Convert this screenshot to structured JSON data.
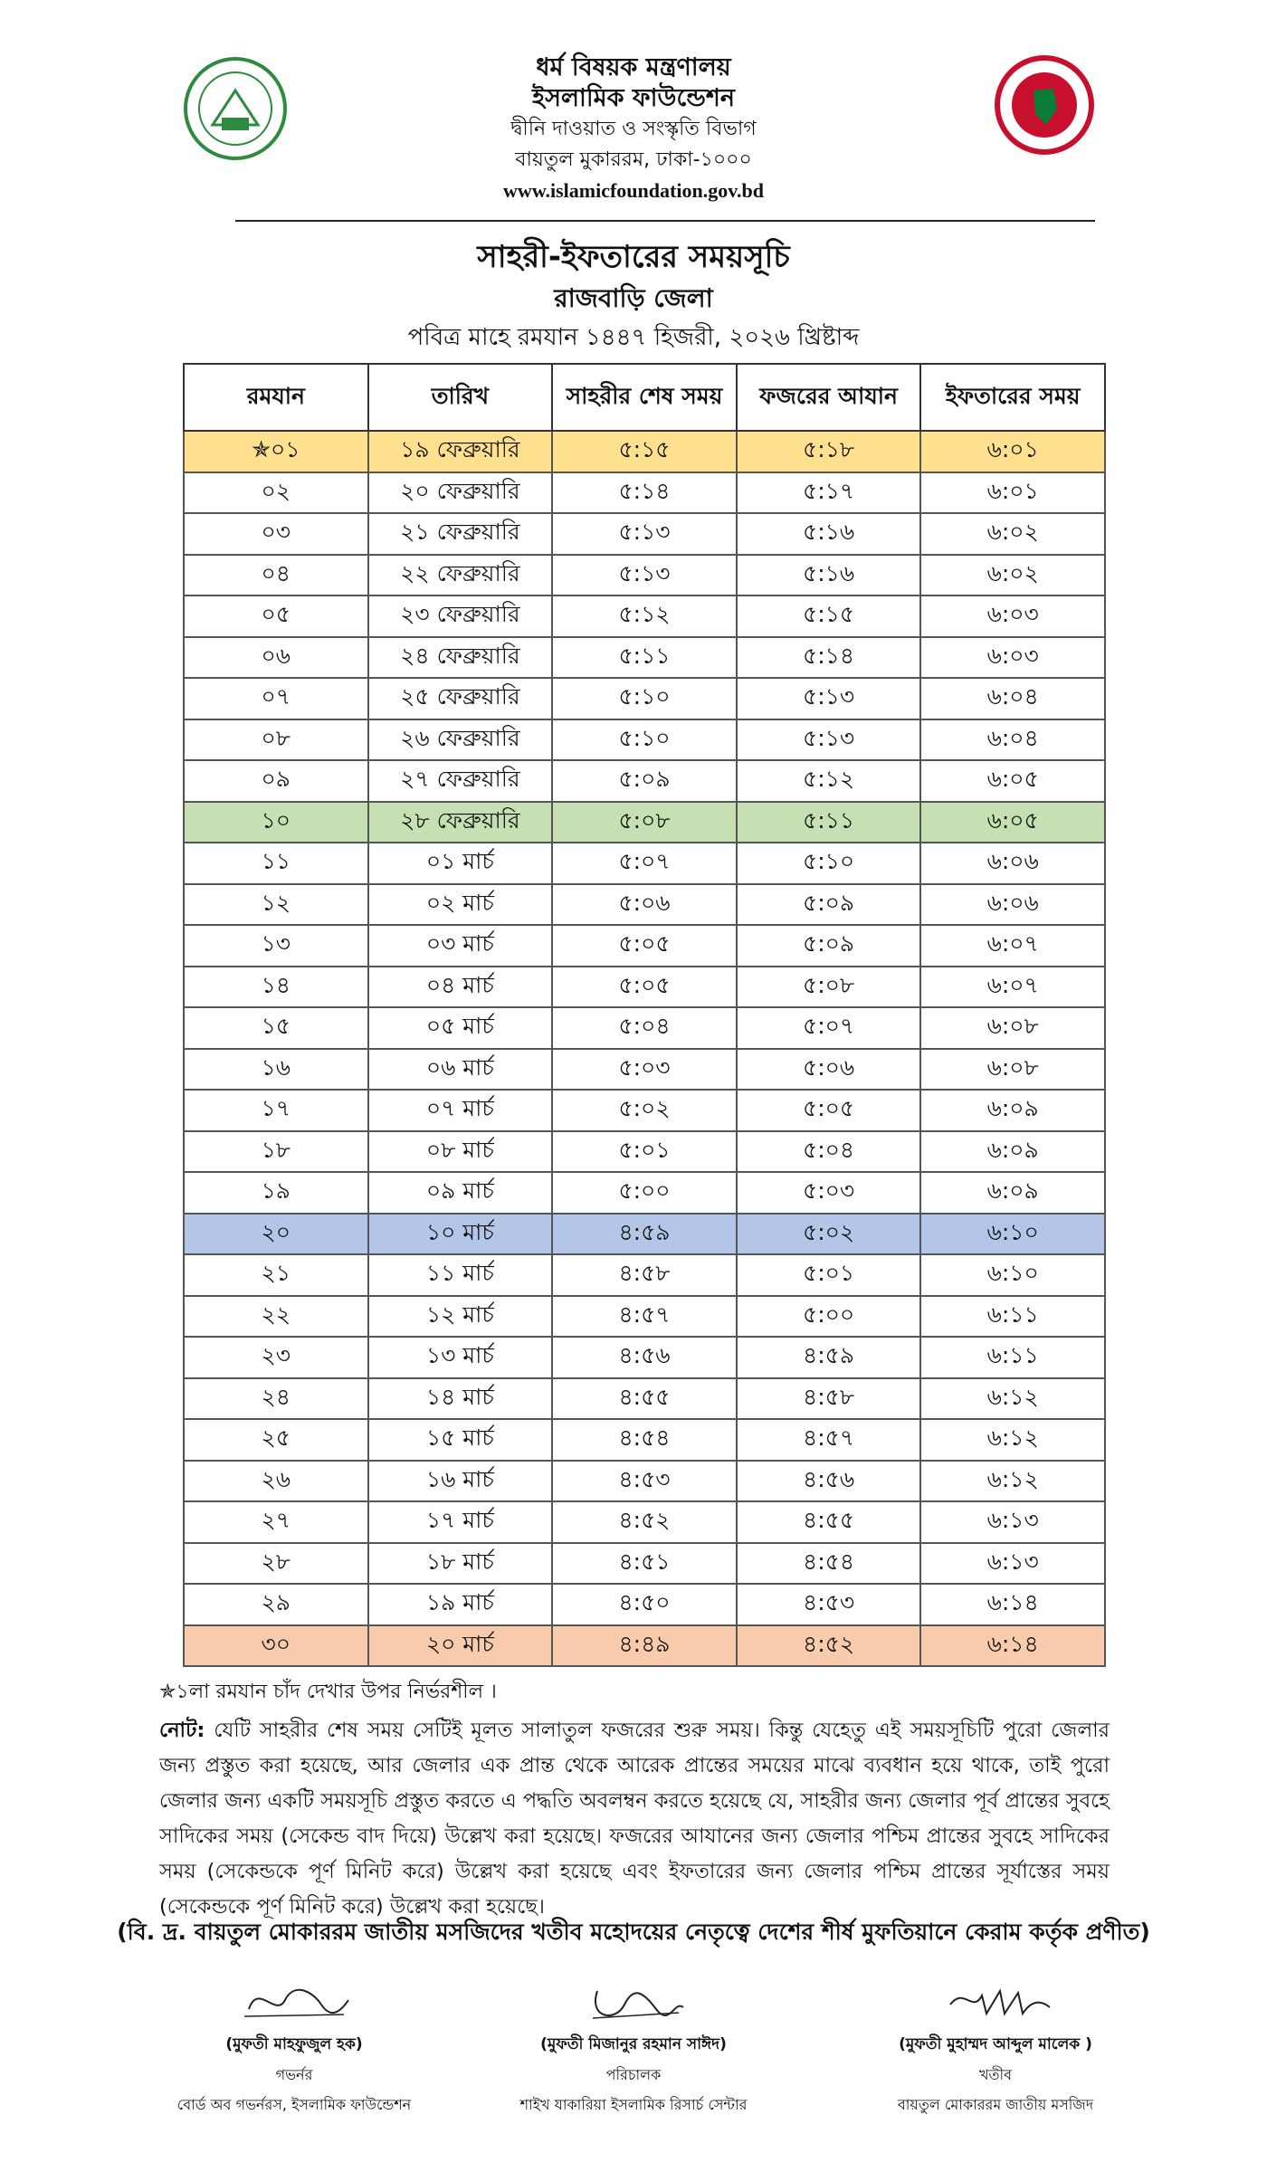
{
  "header": {
    "lines": [
      "ধর্ম বিষয়ক মন্ত্রণালয়",
      "ইসলামিক ফাউন্ডেশন",
      "দ্বীনি দাওয়াত ও সংস্কৃতি বিভাগ",
      "বায়তুল মুকাররম, ঢাকা-১০০০"
    ],
    "website": "www.islamicfoundation.gov.bd"
  },
  "title": "সাহরী-ইফতারের সময়সূচি",
  "district": "রাজবাড়ি জেলা",
  "subtitle": "পবিত্র মাহে রমযান ১৪৪৭ হিজরী, ২০২৬ খ্রিষ্টাব্দ",
  "table": {
    "columns": [
      "রমযান",
      "তারিখ",
      "সাহরীর শেষ সময়",
      "ফজরের আযান",
      "ইফতারের সময়"
    ],
    "rows": [
      [
        "✯০১",
        "১৯ ফেব্রুয়ারি",
        "৫:১৫",
        "৫:১৮",
        "৬:০১"
      ],
      [
        "০২",
        "২০ ফেব্রুয়ারি",
        "৫:১৪",
        "৫:১৭",
        "৬:০১"
      ],
      [
        "০৩",
        "২১ ফেব্রুয়ারি",
        "৫:১৩",
        "৫:১৬",
        "৬:০২"
      ],
      [
        "০৪",
        "২২ ফেব্রুয়ারি",
        "৫:১৩",
        "৫:১৬",
        "৬:০২"
      ],
      [
        "০৫",
        "২৩ ফেব্রুয়ারি",
        "৫:১২",
        "৫:১৫",
        "৬:০৩"
      ],
      [
        "০৬",
        "২৪ ফেব্রুয়ারি",
        "৫:১১",
        "৫:১৪",
        "৬:০৩"
      ],
      [
        "০৭",
        "২৫ ফেব্রুয়ারি",
        "৫:১০",
        "৫:১৩",
        "৬:০৪"
      ],
      [
        "০৮",
        "২৬ ফেব্রুয়ারি",
        "৫:১০",
        "৫:১৩",
        "৬:০৪"
      ],
      [
        "০৯",
        "২৭ ফেব্রুয়ারি",
        "৫:০৯",
        "৫:১২",
        "৬:০৫"
      ],
      [
        "১০",
        "২৮ ফেব্রুয়ারি",
        "৫:০৮",
        "৫:১১",
        "৬:০৫"
      ],
      [
        "১১",
        "০১ মার্চ",
        "৫:০৭",
        "৫:১০",
        "৬:০৬"
      ],
      [
        "১২",
        "০২ মার্চ",
        "৫:০৬",
        "৫:০৯",
        "৬:০৬"
      ],
      [
        "১৩",
        "০৩ মার্চ",
        "৫:০৫",
        "৫:০৯",
        "৬:০৭"
      ],
      [
        "১৪",
        "০৪ মার্চ",
        "৫:০৫",
        "৫:০৮",
        "৬:০৭"
      ],
      [
        "১৫",
        "০৫ মার্চ",
        "৫:০৪",
        "৫:০৭",
        "৬:০৮"
      ],
      [
        "১৬",
        "০৬ মার্চ",
        "৫:০৩",
        "৫:০৬",
        "৬:০৮"
      ],
      [
        "১৭",
        "০৭ মার্চ",
        "৫:০২",
        "৫:০৫",
        "৬:০৯"
      ],
      [
        "১৮",
        "০৮ মার্চ",
        "৫:০১",
        "৫:০৪",
        "৬:০৯"
      ],
      [
        "১৯",
        "০৯ মার্চ",
        "৫:০০",
        "৫:০৩",
        "৬:০৯"
      ],
      [
        "২০",
        "১০ মার্চ",
        "৪:৫৯",
        "৫:০২",
        "৬:১০"
      ],
      [
        "২১",
        "১১ মার্চ",
        "৪:৫৮",
        "৫:০১",
        "৬:১০"
      ],
      [
        "২২",
        "১২ মার্চ",
        "৪:৫৭",
        "৫:০০",
        "৬:১১"
      ],
      [
        "২৩",
        "১৩ মার্চ",
        "৪:৫৬",
        "৪:৫৯",
        "৬:১১"
      ],
      [
        "২৪",
        "১৪ মার্চ",
        "৪:৫৫",
        "৪:৫৮",
        "৬:১২"
      ],
      [
        "২৫",
        "১৫ মার্চ",
        "৪:৫৪",
        "৪:৫৭",
        "৬:১২"
      ],
      [
        "২৬",
        "১৬ মার্চ",
        "৪:৫৩",
        "৪:৫৬",
        "৬:১২"
      ],
      [
        "২৭",
        "১৭ মার্চ",
        "৪:৫২",
        "৪:৫৫",
        "৬:১৩"
      ],
      [
        "২৮",
        "১৮ মার্চ",
        "৪:৫১",
        "৪:৫৪",
        "৬:১৩"
      ],
      [
        "২৯",
        "১৯ মার্চ",
        "৪:৫০",
        "৪:৫৩",
        "৬:১৪"
      ],
      [
        "৩০",
        "২০ মার্চ",
        "৪:৪৯",
        "৪:৫২",
        "৬:১৪"
      ]
    ]
  },
  "footnote": "✯১লা রমযান চাঁদ দেখার উপর নির্ভরশীল ।",
  "note": {
    "label": "নোট:",
    "text": "যেটি সাহরীর শেষ সময় সেটিই মূলত সালাতুল ফজরের শুরু সময়। কিন্তু যেহেতু এই সময়সূচিটি পুরো জেলার জন্য প্রস্তুত করা হয়েছে, আর জেলার এক প্রান্ত থেকে আরেক প্রান্তের সময়ের মাঝে ব্যবধান হয়ে থাকে, তাই পুরো জেলার জন্য একটি সময়সূচি প্রস্তুত করতে এ পদ্ধতি অবলম্বন করতে হয়েছে যে, সাহরীর জন্য জেলার পূর্ব প্রান্তের সুবহে সাদিকের সময় (সেকেন্ড বাদ দিয়ে) উল্লেখ করা হয়েছে। ফজরের আযানের জন্য জেলার পশ্চিম প্রান্তের সুবহে সাদিকের সময় (সেকেন্ডকে পূর্ণ মিনিট করে) উল্লেখ করা হয়েছে এবং ইফতারের জন্য জেলার পশ্চিম প্রান্তের সূর্যাস্তের সময় (সেকেন্ডকে পূর্ণ মিনিট করে) উল্লেখ করা হয়েছে।"
  },
  "endorsement": "(বি. দ্র. বায়তুল মোকাররম জাতীয় মসজিদের খতীব মহোদয়ের নেতৃত্বে দেশের শীর্ষ মুফতিয়ানে কেরাম কর্তৃক প্রণীত)",
  "signatories": [
    {
      "name": "(মুফতী মাহফুজুল হক)",
      "role": "গভর্নর",
      "org": "বোর্ড অব গভর্নরস, ইসলামিক ফাউন্ডেশন"
    },
    {
      "name": "(মুফতী মিজানুর রহমান সাঈদ)",
      "role": "পরিচালক",
      "org": "শাইখ যাকারিয়া ইসলামিক রিসার্চ সেন্টার"
    },
    {
      "name": "(মুফতী মুহাম্মদ আব্দুল মালেক )",
      "role": "খতীব",
      "org": "বায়তুল মোকাররম জাতীয় মসজিদ"
    }
  ]
}
